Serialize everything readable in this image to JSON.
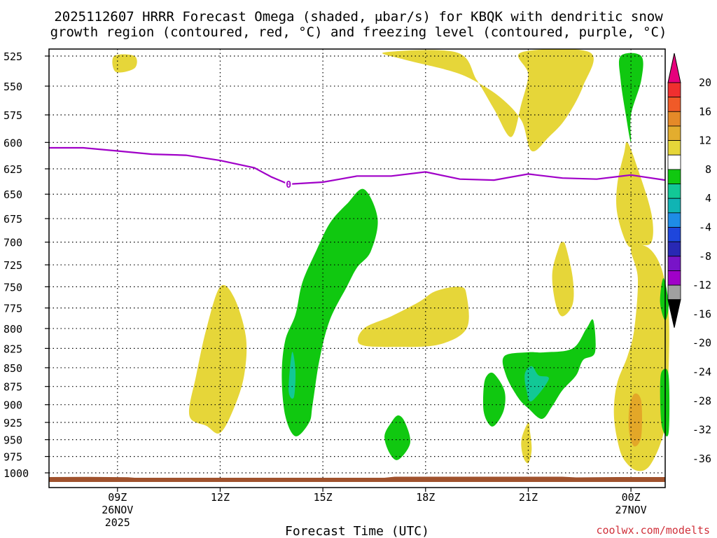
{
  "colors": {
    "yellow": "#e6d639",
    "green": "#10c810",
    "teal": "#12c896",
    "orange": "#e3a728",
    "freezing": "#a000c8",
    "ground": "#a0522d",
    "credit": "#d0303a"
  },
  "chart_data": {
    "type": "heatmap",
    "title_line1": "2025112607 HRRR Forecast Omega (shaded, μbar/s) for KBQK with dendritic snow",
    "title_line2": "growth region (contoured, red, °C) and freezing level (contoured, purple, °C)",
    "xlabel": "Forecast Time (UTC)",
    "credit": "coolwx.com/modelts",
    "x_range_hours": [
      7,
      25
    ],
    "y_range_mb": [
      525,
      1000
    ],
    "y_ticks": [
      "525",
      "550",
      "575",
      "600",
      "625",
      "650",
      "675",
      "700",
      "725",
      "750",
      "775",
      "800",
      "825",
      "850",
      "875",
      "900",
      "925",
      "950",
      "975",
      "1000"
    ],
    "x_ticks": [
      {
        "hour": 9,
        "label": "09Z",
        "date": "26NOV",
        "year": "2025"
      },
      {
        "hour": 12,
        "label": "12Z"
      },
      {
        "hour": 15,
        "label": "15Z"
      },
      {
        "hour": 18,
        "label": "18Z"
      },
      {
        "hour": 21,
        "label": "21Z"
      },
      {
        "hour": 24,
        "label": "00Z",
        "date": "27NOV"
      }
    ],
    "colorbar": {
      "labels": [
        "20",
        "16",
        "12",
        "8",
        "4",
        "-4",
        "-8",
        "-12",
        "-16",
        "-20",
        "-24",
        "-28",
        "-32",
        "-36"
      ],
      "colors": [
        "#e6007c",
        "#f02f2f",
        "#f05a28",
        "#e58a28",
        "#e3ad2e",
        "#e6d639",
        "#ffffff",
        "#10c810",
        "#12c896",
        "#10b4b4",
        "#1e8ce6",
        "#1e46dc",
        "#2828b4",
        "#7814c8",
        "#a000c8",
        "#a0a0a0",
        "#000000"
      ]
    },
    "freezing_level": {
      "label": "0",
      "hours": [
        7,
        8,
        9,
        10,
        11,
        12,
        13,
        13.5,
        14,
        15,
        15.5,
        16,
        17,
        18,
        19,
        20,
        21,
        22,
        23,
        24,
        25
      ],
      "pressure_mb": [
        605,
        605,
        608,
        611,
        612,
        617,
        624,
        633,
        640,
        638,
        635,
        632,
        632,
        628,
        635,
        636,
        630,
        634,
        635,
        631,
        636
      ]
    },
    "regions": [
      {
        "name": "omega-yellow-a",
        "color": "yellow",
        "pts": [
          [
            8.9,
            525
          ],
          [
            9.5,
            525
          ],
          [
            9.5,
            535
          ],
          [
            8.95,
            538
          ]
        ]
      },
      {
        "name": "omega-yellow-b",
        "color": "yellow",
        "pts": [
          [
            11.1,
            915
          ],
          [
            11.3,
            860
          ],
          [
            11.6,
            800
          ],
          [
            12.0,
            750
          ],
          [
            12.4,
            762
          ],
          [
            12.75,
            810
          ],
          [
            12.7,
            860
          ],
          [
            12.4,
            905
          ],
          [
            12.0,
            940
          ],
          [
            11.6,
            930
          ]
        ]
      },
      {
        "name": "omega-yellow-c",
        "color": "yellow",
        "pts": [
          [
            16.8,
            522
          ],
          [
            18.9,
            522
          ],
          [
            19.5,
            545
          ],
          [
            20.0,
            570
          ],
          [
            20.5,
            595
          ],
          [
            20.8,
            565
          ],
          [
            21.0,
            540
          ],
          [
            20.8,
            522
          ],
          [
            22.8,
            522
          ],
          [
            22.6,
            550
          ],
          [
            22.1,
            578
          ],
          [
            21.6,
            595
          ],
          [
            21.1,
            608
          ],
          [
            20.8,
            580
          ],
          [
            20.2,
            560
          ],
          [
            19.4,
            545
          ],
          [
            18.7,
            537
          ],
          [
            17.4,
            528
          ]
        ]
      },
      {
        "name": "omega-yellow-d",
        "color": "yellow",
        "pts": [
          [
            16.2,
            800
          ],
          [
            17.0,
            785
          ],
          [
            17.8,
            768
          ],
          [
            18.3,
            755
          ],
          [
            19.0,
            750
          ],
          [
            19.2,
            760
          ],
          [
            19.2,
            800
          ],
          [
            18.4,
            820
          ],
          [
            17.2,
            823
          ],
          [
            16.1,
            820
          ]
        ]
      },
      {
        "name": "omega-yellow-e",
        "color": "yellow",
        "pts": [
          [
            21.7,
            735
          ],
          [
            21.9,
            705
          ],
          [
            22.0,
            700
          ],
          [
            22.1,
            705
          ],
          [
            22.3,
            740
          ],
          [
            22.3,
            770
          ],
          [
            22.0,
            785
          ],
          [
            21.8,
            770
          ]
        ]
      },
      {
        "name": "omega-yellow-f",
        "color": "yellow",
        "pts": [
          [
            23.6,
            640
          ],
          [
            23.8,
            610
          ],
          [
            23.9,
            600
          ],
          [
            24.2,
            625
          ],
          [
            24.6,
            670
          ],
          [
            24.6,
            700
          ],
          [
            24.2,
            703
          ],
          [
            23.9,
            703
          ],
          [
            23.6,
            670
          ]
        ]
      },
      {
        "name": "omega-yellow-g",
        "color": "yellow",
        "pts": [
          [
            23.5,
            910
          ],
          [
            23.6,
            870
          ],
          [
            23.9,
            835
          ],
          [
            24.1,
            800
          ],
          [
            24.2,
            740
          ],
          [
            24.0,
            706
          ],
          [
            24.5,
            706
          ],
          [
            24.9,
            730
          ],
          [
            25.1,
            780
          ],
          [
            25.1,
            850
          ],
          [
            25.0,
            930
          ],
          [
            24.6,
            985
          ],
          [
            24.2,
            997
          ],
          [
            23.8,
            980
          ],
          [
            23.6,
            950
          ]
        ]
      },
      {
        "name": "omega-yellow-h",
        "color": "yellow",
        "pts": [
          [
            20.8,
            950
          ],
          [
            21.0,
            925
          ],
          [
            21.05,
            938
          ],
          [
            21.1,
            965
          ],
          [
            21.0,
            985
          ],
          [
            20.85,
            975
          ]
        ]
      },
      {
        "name": "omega-orange-a",
        "color": "orange",
        "pts": [
          [
            23.95,
            905
          ],
          [
            24.1,
            885
          ],
          [
            24.3,
            895
          ],
          [
            24.3,
            945
          ],
          [
            24.1,
            960
          ],
          [
            23.95,
            940
          ]
        ]
      },
      {
        "name": "omega-green-a",
        "color": "green",
        "pts": [
          [
            14.2,
            783
          ],
          [
            14.4,
            745
          ],
          [
            14.8,
            710
          ],
          [
            15.2,
            680
          ],
          [
            15.7,
            660
          ],
          [
            16.2,
            645
          ],
          [
            16.6,
            675
          ],
          [
            16.4,
            710
          ],
          [
            16.0,
            728
          ],
          [
            15.7,
            750
          ],
          [
            15.2,
            790
          ],
          [
            14.9,
            840
          ],
          [
            14.7,
            900
          ],
          [
            14.6,
            925
          ],
          [
            14.2,
            945
          ],
          [
            13.9,
            915
          ],
          [
            13.8,
            860
          ],
          [
            13.9,
            815
          ]
        ]
      },
      {
        "name": "omega-green-b",
        "color": "green",
        "pts": [
          [
            16.8,
            945
          ],
          [
            17.0,
            925
          ],
          [
            17.2,
            915
          ],
          [
            17.4,
            925
          ],
          [
            17.55,
            955
          ],
          [
            17.2,
            980
          ],
          [
            16.95,
            970
          ]
        ]
      },
      {
        "name": "omega-green-c",
        "color": "green",
        "pts": [
          [
            19.7,
            875
          ],
          [
            19.8,
            860
          ],
          [
            20.0,
            858
          ],
          [
            20.3,
            880
          ],
          [
            20.3,
            905
          ],
          [
            20.1,
            925
          ],
          [
            19.9,
            930
          ],
          [
            19.7,
            910
          ]
        ]
      },
      {
        "name": "omega-green-d",
        "color": "green",
        "pts": [
          [
            20.3,
            835
          ],
          [
            21.0,
            830
          ],
          [
            21.5,
            830
          ],
          [
            22.3,
            825
          ],
          [
            22.7,
            800
          ],
          [
            22.9,
            790
          ],
          [
            22.95,
            830
          ],
          [
            22.6,
            840
          ],
          [
            22.4,
            860
          ],
          [
            22.0,
            880
          ],
          [
            21.7,
            902
          ],
          [
            21.4,
            920
          ],
          [
            21.0,
            905
          ],
          [
            20.7,
            890
          ],
          [
            20.35,
            860
          ]
        ]
      },
      {
        "name": "omega-green-e",
        "color": "green",
        "pts": [
          [
            23.7,
            525
          ],
          [
            24.3,
            525
          ],
          [
            24.3,
            545
          ],
          [
            24.0,
            575
          ],
          [
            24.0,
            600
          ],
          [
            23.85,
            575
          ],
          [
            23.7,
            545
          ]
        ]
      },
      {
        "name": "omega-green-f",
        "color": "green",
        "pts": [
          [
            24.85,
            768
          ],
          [
            24.95,
            740
          ],
          [
            25.1,
            770
          ],
          [
            25.0,
            790
          ]
        ]
      },
      {
        "name": "omega-green-g",
        "color": "green",
        "pts": [
          [
            24.85,
            880
          ],
          [
            24.9,
            855
          ],
          [
            25.1,
            860
          ],
          [
            25.1,
            940
          ],
          [
            24.9,
            930
          ]
        ]
      },
      {
        "name": "omega-teal-a",
        "color": "teal",
        "pts": [
          [
            14.0,
            880
          ],
          [
            14.1,
            830
          ],
          [
            14.2,
            855
          ],
          [
            14.15,
            890
          ]
        ]
      },
      {
        "name": "omega-teal-b",
        "color": "teal",
        "pts": [
          [
            20.9,
            858
          ],
          [
            21.1,
            848
          ],
          [
            21.3,
            860
          ],
          [
            21.6,
            865
          ],
          [
            21.1,
            895
          ],
          [
            20.95,
            880
          ]
        ]
      }
    ]
  }
}
